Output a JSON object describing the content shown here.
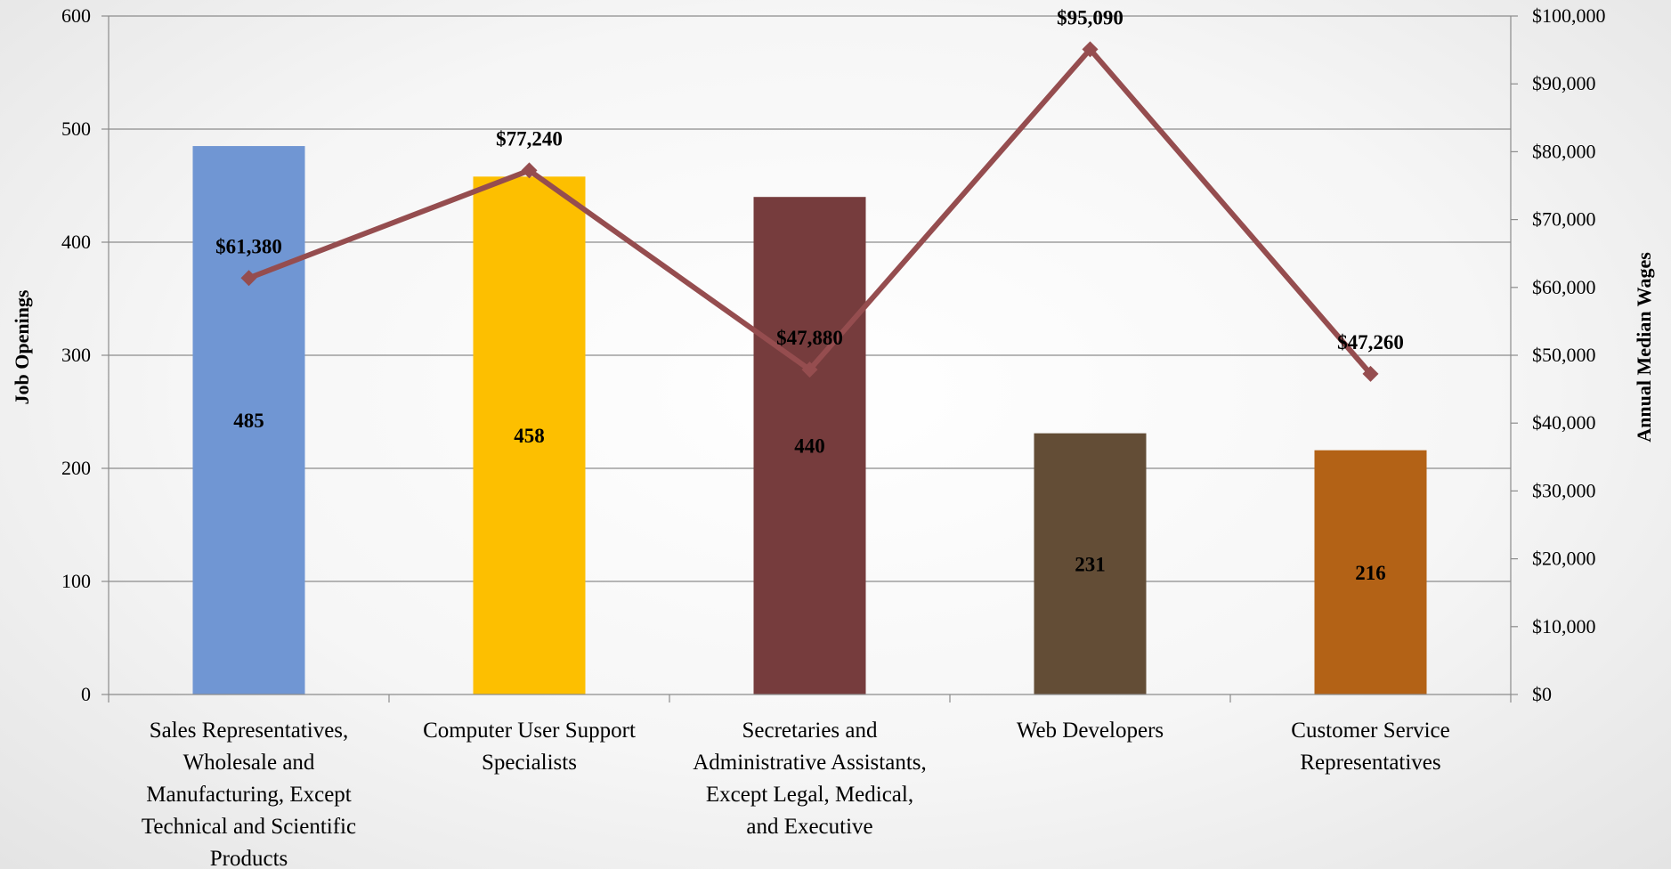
{
  "chart_data": {
    "type": "bar",
    "categories": [
      [
        "Sales Representatives,",
        "Wholesale and",
        "Manufacturing, Except",
        "Technical and Scientific",
        "Products"
      ],
      [
        "Computer User Support",
        "Specialists"
      ],
      [
        "Secretaries and",
        "Administrative Assistants,",
        "Except Legal, Medical,",
        "and Executive"
      ],
      [
        "Web Developers"
      ],
      [
        "Customer Service",
        "Representatives"
      ]
    ],
    "series": [
      {
        "type": "bar",
        "axis": "left",
        "values": [
          485,
          458,
          440,
          231,
          216
        ],
        "labels": [
          "485",
          "458",
          "440",
          "231",
          "216"
        ],
        "colors": [
          "#7096d3",
          "#fdbf00",
          "#763c3d",
          "#634d36",
          "#b36216"
        ]
      },
      {
        "type": "line",
        "axis": "right",
        "values": [
          61380,
          77240,
          47880,
          95090,
          47260
        ],
        "labels": [
          "$61,380",
          "$77,240",
          "$47,880",
          "$95,090",
          "$47,260"
        ],
        "color": "#954d4f"
      }
    ],
    "ylabel": "Job Openings",
    "y2label": "Annual Median Wages",
    "ylim": [
      0,
      600
    ],
    "yticks": [
      0,
      100,
      200,
      300,
      400,
      500,
      600
    ],
    "ytick_labels": [
      "0",
      "100",
      "200",
      "300",
      "400",
      "500",
      "600"
    ],
    "y2lim": [
      0,
      100000
    ],
    "y2ticks": [
      0,
      10000,
      20000,
      30000,
      40000,
      50000,
      60000,
      70000,
      80000,
      90000,
      100000
    ],
    "y2tick_labels": [
      "$0",
      "$10,000",
      "$20,000",
      "$30,000",
      "$40,000",
      "$50,000",
      "$60,000",
      "$70,000",
      "$80,000",
      "$90,000",
      "$100,000"
    ],
    "grid": true,
    "gridline_color": "#8c8c8c"
  }
}
